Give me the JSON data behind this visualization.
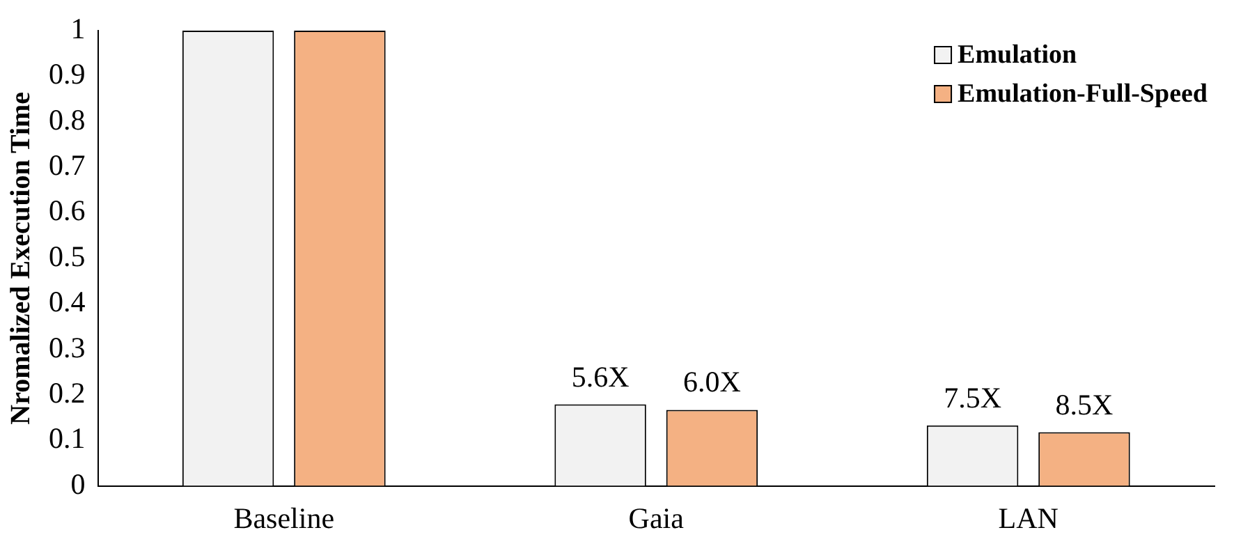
{
  "chart_data": {
    "type": "bar",
    "ylabel": "Nromalized Execution Time",
    "categories": [
      "Baseline",
      "Gaia",
      "LAN"
    ],
    "series": [
      {
        "name": "Emulation",
        "color": "#f2f2f2",
        "values": [
          1,
          0.179,
          0.133
        ]
      },
      {
        "name": "Emulation-Full-Speed",
        "color": "#f4b183",
        "values": [
          1,
          0.167,
          0.118
        ]
      }
    ],
    "annotations": [
      "5.6X",
      "6.0X",
      "7.5X",
      "8.5X"
    ],
    "ylim": [
      0,
      1
    ],
    "yticks": [
      0,
      0.1,
      0.2,
      0.3,
      0.4,
      0.5,
      0.6,
      0.7,
      0.8,
      0.9,
      1
    ],
    "grid": false,
    "legend": "top right"
  }
}
